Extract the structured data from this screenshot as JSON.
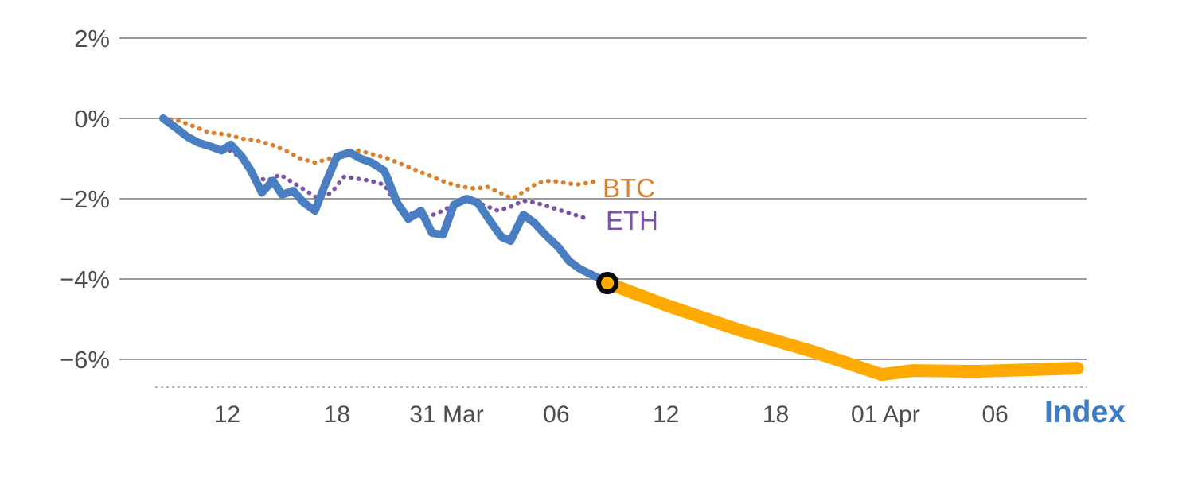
{
  "chart_data": {
    "type": "line",
    "title": "",
    "xlabel": "Index",
    "ylabel": "",
    "x_unit": "time, 6-hour ticks (day numbers are hours; month-start ticks labeled with date)",
    "xlim": [
      8.5,
      59
    ],
    "ylim": [
      -6.7,
      2.5
    ],
    "grid": true,
    "legend_position": "inline-end-of-line",
    "yticks": [
      2,
      0,
      -2,
      -4,
      -6
    ],
    "ytick_labels": [
      "2%",
      "0%",
      "−2%",
      "−4%",
      "−6%"
    ],
    "xticks": [
      12,
      18,
      24,
      30,
      36,
      42,
      48,
      54
    ],
    "xtick_labels": [
      "12",
      "18",
      "31 Mar",
      "06",
      "12",
      "18",
      "01 Apr",
      "06"
    ],
    "colors": {
      "btc": "#d9822b",
      "eth": "#7d55a8",
      "index": "#4a7ec2",
      "index_projection": "#ffaa00",
      "axis_text": "#4d4d4d",
      "gridline": "#9c9c9c",
      "axis_title": "#3e7dc4",
      "marker_ring": "#0a0a0a"
    },
    "series": [
      {
        "id": "btc",
        "label": "BTC",
        "color": "#d9822b",
        "style": "dotted",
        "width": 5.5,
        "dash": "0.5 9",
        "points": [
          [
            8.5,
            0
          ],
          [
            9.3,
            -0.05
          ],
          [
            10.2,
            -0.2
          ],
          [
            11.0,
            -0.35
          ],
          [
            12.0,
            -0.4
          ],
          [
            12.8,
            -0.5
          ],
          [
            13.6,
            -0.55
          ],
          [
            14.4,
            -0.65
          ],
          [
            15.2,
            -0.8
          ],
          [
            16.0,
            -1.0
          ],
          [
            16.8,
            -1.1
          ],
          [
            17.6,
            -1.0
          ],
          [
            18.4,
            -0.9
          ],
          [
            19.2,
            -0.8
          ],
          [
            20.0,
            -0.9
          ],
          [
            20.8,
            -1.0
          ],
          [
            21.6,
            -1.15
          ],
          [
            22.4,
            -1.3
          ],
          [
            23.2,
            -1.45
          ],
          [
            24.0,
            -1.6
          ],
          [
            24.8,
            -1.7
          ],
          [
            25.6,
            -1.75
          ],
          [
            26.2,
            -1.7
          ],
          [
            26.9,
            -1.85
          ],
          [
            27.6,
            -2.0
          ],
          [
            28.3,
            -1.8
          ],
          [
            29.0,
            -1.6
          ],
          [
            29.7,
            -1.55
          ],
          [
            30.4,
            -1.6
          ],
          [
            31.1,
            -1.65
          ],
          [
            31.8,
            -1.6
          ],
          [
            32.3,
            -1.55
          ]
        ]
      },
      {
        "id": "eth",
        "label": "ETH",
        "color": "#7d55a8",
        "style": "dotted",
        "width": 5.5,
        "dash": "0.5 9",
        "points": [
          [
            8.5,
            0
          ],
          [
            9.3,
            -0.3
          ],
          [
            10.2,
            -0.55
          ],
          [
            11.0,
            -0.7
          ],
          [
            12.0,
            -0.75
          ],
          [
            12.8,
            -1.0
          ],
          [
            13.5,
            -1.45
          ],
          [
            14.2,
            -1.55
          ],
          [
            14.9,
            -1.4
          ],
          [
            15.6,
            -1.6
          ],
          [
            16.3,
            -1.8
          ],
          [
            17.0,
            -2.0
          ],
          [
            17.7,
            -1.85
          ],
          [
            18.4,
            -1.45
          ],
          [
            19.1,
            -1.5
          ],
          [
            19.8,
            -1.55
          ],
          [
            20.6,
            -1.65
          ],
          [
            21.4,
            -2.25
          ],
          [
            22.2,
            -2.4
          ],
          [
            23.0,
            -2.45
          ],
          [
            23.8,
            -2.3
          ],
          [
            24.6,
            -2.1
          ],
          [
            25.3,
            -2.05
          ],
          [
            26.0,
            -2.15
          ],
          [
            26.8,
            -2.3
          ],
          [
            27.5,
            -2.2
          ],
          [
            28.2,
            -2.05
          ],
          [
            28.9,
            -2.1
          ],
          [
            29.6,
            -2.2
          ],
          [
            30.3,
            -2.3
          ],
          [
            31.0,
            -2.4
          ],
          [
            31.7,
            -2.5
          ]
        ]
      },
      {
        "id": "index",
        "label": "Index",
        "color": "#4a7ec2",
        "style": "solid",
        "width": 10,
        "points": [
          [
            8.5,
            0
          ],
          [
            9.1,
            -0.2
          ],
          [
            9.8,
            -0.45
          ],
          [
            10.4,
            -0.6
          ],
          [
            11.1,
            -0.7
          ],
          [
            11.7,
            -0.8
          ],
          [
            12.2,
            -0.65
          ],
          [
            12.8,
            -0.95
          ],
          [
            13.3,
            -1.3
          ],
          [
            13.9,
            -1.85
          ],
          [
            14.5,
            -1.55
          ],
          [
            15.0,
            -1.9
          ],
          [
            15.6,
            -1.8
          ],
          [
            16.2,
            -2.1
          ],
          [
            16.8,
            -2.3
          ],
          [
            17.4,
            -1.6
          ],
          [
            18.0,
            -0.95
          ],
          [
            18.7,
            -0.85
          ],
          [
            19.3,
            -1.0
          ],
          [
            19.9,
            -1.1
          ],
          [
            20.6,
            -1.3
          ],
          [
            21.3,
            -2.1
          ],
          [
            21.9,
            -2.5
          ],
          [
            22.6,
            -2.3
          ],
          [
            23.2,
            -2.85
          ],
          [
            23.8,
            -2.9
          ],
          [
            24.4,
            -2.15
          ],
          [
            25.1,
            -2.0
          ],
          [
            25.7,
            -2.1
          ],
          [
            26.3,
            -2.5
          ],
          [
            27.0,
            -2.95
          ],
          [
            27.5,
            -3.05
          ],
          [
            28.2,
            -2.4
          ],
          [
            28.8,
            -2.6
          ],
          [
            29.4,
            -2.9
          ],
          [
            30.1,
            -3.2
          ],
          [
            30.7,
            -3.55
          ],
          [
            31.3,
            -3.75
          ],
          [
            32.2,
            -3.95
          ],
          [
            32.8,
            -4.1
          ]
        ]
      },
      {
        "id": "index-projection",
        "label": "",
        "color": "#ffaa00",
        "style": "solid",
        "width": 16,
        "points": [
          [
            32.8,
            -4.1
          ],
          [
            36,
            -4.65
          ],
          [
            40,
            -5.27
          ],
          [
            44,
            -5.8
          ],
          [
            47.8,
            -6.38
          ],
          [
            49.5,
            -6.28
          ],
          [
            53,
            -6.3
          ],
          [
            58.5,
            -6.22
          ]
        ]
      }
    ],
    "marker": {
      "at": [
        32.8,
        -4.1
      ],
      "value_pct": -4.1,
      "fill": "#ffaa00",
      "ring": "#0a0a0a"
    }
  }
}
